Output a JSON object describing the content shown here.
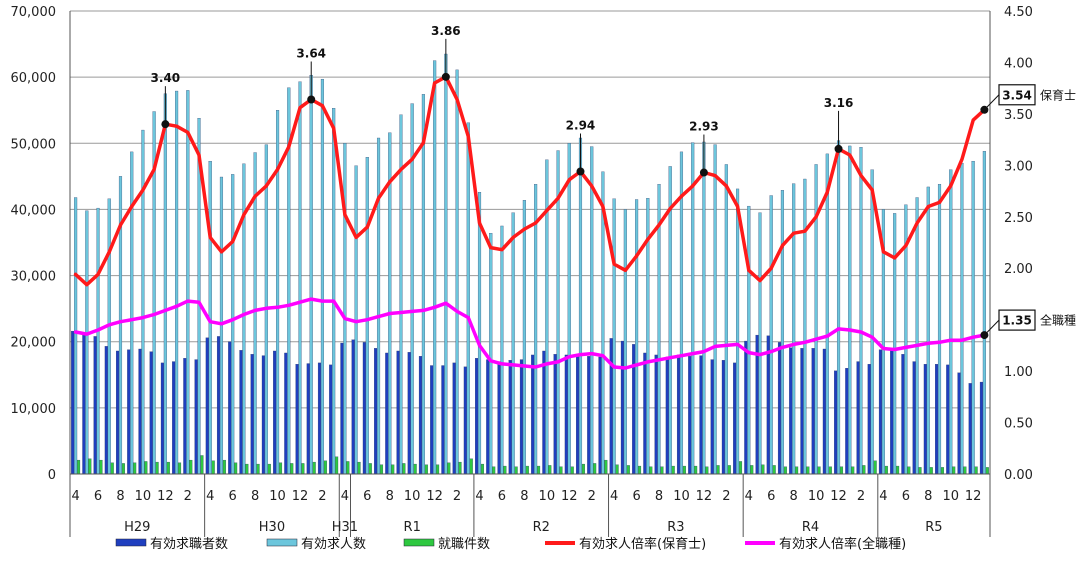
{
  "chart_data": {
    "type": "bar+line",
    "left_axis": {
      "min": 0,
      "max": 70000,
      "step": 10000,
      "tick_labels": [
        "0",
        "10,000",
        "20,000",
        "30,000",
        "40,000",
        "50,000",
        "60,000",
        "70,000"
      ]
    },
    "right_axis": {
      "min": 0,
      "max": 4.5,
      "step": 0.5,
      "tick_labels": [
        "0.00",
        "0.50",
        "1.00",
        "1.50",
        "2.00",
        "2.50",
        "3.00",
        "3.50",
        "4.00",
        "4.50"
      ]
    },
    "month_labels": [
      "4",
      "6",
      "8",
      "10",
      "12",
      "2",
      "4",
      "6",
      "8",
      "10",
      "12",
      "2",
      "4",
      "6",
      "8",
      "10",
      "12",
      "2",
      "4",
      "6",
      "8",
      "10",
      "12",
      "2",
      "4",
      "6",
      "8",
      "10",
      "12",
      "2",
      "4",
      "6",
      "8",
      "10",
      "12",
      "2",
      "4",
      "6",
      "8",
      "10",
      "12"
    ],
    "month_label_index": [
      0,
      2,
      4,
      6,
      8,
      10,
      12,
      14,
      16,
      18,
      20,
      22,
      24,
      26,
      28,
      30,
      32,
      34,
      36,
      38,
      40,
      42,
      44,
      46,
      48,
      50,
      52,
      54,
      56,
      58,
      60,
      62,
      64,
      66,
      68,
      70,
      72,
      74,
      76,
      78,
      80
    ],
    "groups": [
      {
        "label": "H29",
        "start": 0,
        "end": 11
      },
      {
        "label": "H30",
        "start": 12,
        "end": 23
      },
      {
        "label": "H31",
        "start": 24,
        "end": 24
      },
      {
        "label": "R1",
        "start": 25,
        "end": 35
      },
      {
        "label": "R2",
        "start": 36,
        "end": 47
      },
      {
        "label": "R3",
        "start": 48,
        "end": 59
      },
      {
        "label": "R4",
        "start": 60,
        "end": 71
      },
      {
        "label": "R5",
        "start": 72,
        "end": 81
      }
    ],
    "legend": [
      "有効求職者数",
      "有効求人数",
      "就職件数",
      "有効求人倍率(保育士)",
      "有効求人倍率(全職種)"
    ],
    "colors": {
      "seekers": "#1f3fbf",
      "openings": "#6cc6dc",
      "placements": "#2ec840",
      "ratio_nursery": "#ff1a1a",
      "ratio_all": "#ff00ff"
    },
    "series": [
      {
        "name": "有効求職者数",
        "axis": "left",
        "values": [
          21600,
          21300,
          20800,
          19300,
          18600,
          18800,
          18900,
          18500,
          16800,
          17000,
          17500,
          17300,
          20600,
          20800,
          20000,
          18700,
          18100,
          17900,
          18600,
          18300,
          16600,
          16700,
          16800,
          16500,
          19800,
          20300,
          19900,
          19000,
          18300,
          18600,
          18400,
          17800,
          16400,
          16400,
          16800,
          16200,
          17500,
          17300,
          17000,
          17200,
          17300,
          18000,
          18600,
          18100,
          18000,
          17800,
          17800,
          17700,
          20500,
          20100,
          19600,
          18300,
          18000,
          17700,
          18000,
          17800,
          17900,
          17300,
          17200,
          16800,
          20100,
          21000,
          20900,
          19900,
          19100,
          19000,
          19000,
          18900,
          15600,
          16000,
          17000,
          16600,
          18800,
          18800,
          18100,
          17000,
          16600,
          16600,
          16500,
          15300,
          13700,
          13900
        ]
      },
      {
        "name": "有効求人数",
        "axis": "left",
        "values": [
          41800,
          39800,
          40200,
          41600,
          45000,
          48700,
          52000,
          54800,
          57500,
          57900,
          58000,
          53800,
          47300,
          44900,
          45300,
          46900,
          48600,
          49800,
          55000,
          58400,
          59300,
          60300,
          59700,
          55300,
          50000,
          46600,
          47900,
          50800,
          51600,
          54300,
          56000,
          57400,
          62500,
          63500,
          61100,
          53100,
          42600,
          36400,
          37500,
          39500,
          41400,
          43800,
          47500,
          48900,
          50000,
          50800,
          49500,
          45700,
          41600,
          40000,
          41500,
          41700,
          43800,
          46500,
          48700,
          50100,
          50200,
          49800,
          46800,
          43100,
          40500,
          39500,
          42100,
          42900,
          43900,
          44600,
          46800,
          48400,
          50400,
          49600,
          49400,
          46000,
          40000,
          39400,
          40700,
          41800,
          43400,
          43800,
          46000,
          47000,
          47300,
          48800
        ]
      },
      {
        "name": "就職件数",
        "axis": "left",
        "values": [
          2100,
          2300,
          2100,
          1700,
          1600,
          1700,
          1900,
          1800,
          1800,
          1700,
          2100,
          2800,
          2000,
          2100,
          1700,
          1500,
          1500,
          1500,
          1700,
          1600,
          1600,
          1800,
          2000,
          2600,
          1900,
          1800,
          1600,
          1400,
          1400,
          1600,
          1500,
          1400,
          1400,
          1700,
          1800,
          2300,
          1500,
          1100,
          1200,
          1100,
          1200,
          1200,
          1300,
          1100,
          1100,
          1500,
          1600,
          2100,
          1400,
          1300,
          1200,
          1100,
          1100,
          1200,
          1200,
          1200,
          1100,
          1300,
          1300,
          1900,
          1300,
          1400,
          1300,
          1100,
          1100,
          1100,
          1100,
          1100,
          1100,
          1100,
          1300,
          2000,
          1200,
          1200,
          1100,
          1000,
          1000,
          1000,
          1100,
          1100,
          1100,
          1000
        ]
      },
      {
        "name": "有効求人倍率(保育士)",
        "axis": "right",
        "values": [
          1.94,
          1.84,
          1.94,
          2.16,
          2.42,
          2.6,
          2.76,
          2.96,
          3.4,
          3.38,
          3.32,
          3.1,
          2.3,
          2.16,
          2.26,
          2.52,
          2.7,
          2.8,
          2.96,
          3.18,
          3.56,
          3.64,
          3.58,
          3.36,
          2.52,
          2.3,
          2.4,
          2.68,
          2.84,
          2.96,
          3.06,
          3.22,
          3.8,
          3.86,
          3.64,
          3.28,
          2.44,
          2.2,
          2.18,
          2.3,
          2.38,
          2.44,
          2.56,
          2.68,
          2.86,
          2.94,
          2.8,
          2.6,
          2.04,
          1.98,
          2.12,
          2.28,
          2.42,
          2.58,
          2.7,
          2.8,
          2.93,
          2.9,
          2.8,
          2.6,
          1.98,
          1.88,
          2.0,
          2.22,
          2.34,
          2.36,
          2.5,
          2.74,
          3.16,
          3.1,
          2.9,
          2.76,
          2.16,
          2.1,
          2.22,
          2.44,
          2.6,
          2.64,
          2.8,
          3.06,
          3.44,
          3.54
        ]
      },
      {
        "name": "有効求人倍率(全職種)",
        "axis": "right",
        "values": [
          1.38,
          1.36,
          1.4,
          1.45,
          1.48,
          1.5,
          1.52,
          1.55,
          1.59,
          1.63,
          1.68,
          1.67,
          1.48,
          1.46,
          1.5,
          1.55,
          1.59,
          1.61,
          1.62,
          1.64,
          1.67,
          1.7,
          1.68,
          1.68,
          1.51,
          1.48,
          1.5,
          1.53,
          1.56,
          1.57,
          1.58,
          1.59,
          1.62,
          1.66,
          1.58,
          1.52,
          1.25,
          1.1,
          1.07,
          1.06,
          1.05,
          1.04,
          1.07,
          1.09,
          1.14,
          1.16,
          1.17,
          1.15,
          1.04,
          1.03,
          1.06,
          1.09,
          1.11,
          1.13,
          1.15,
          1.17,
          1.19,
          1.24,
          1.25,
          1.26,
          1.18,
          1.16,
          1.19,
          1.23,
          1.26,
          1.28,
          1.31,
          1.34,
          1.41,
          1.4,
          1.38,
          1.33,
          1.22,
          1.21,
          1.23,
          1.25,
          1.27,
          1.28,
          1.3,
          1.3,
          1.33,
          1.35
        ]
      }
    ],
    "peak_annotations": [
      {
        "index": 8,
        "value": 3.4,
        "label": "3.40"
      },
      {
        "index": 21,
        "value": 3.64,
        "label": "3.64"
      },
      {
        "index": 33,
        "value": 3.86,
        "label": "3.86"
      },
      {
        "index": 45,
        "value": 2.94,
        "label": "2.94"
      },
      {
        "index": 56,
        "value": 2.93,
        "label": "2.93"
      },
      {
        "index": 68,
        "value": 3.16,
        "label": "3.16"
      }
    ],
    "end_labels": [
      {
        "series": 3,
        "value": 3.54,
        "label": "3.54",
        "name": "保育士"
      },
      {
        "series": 4,
        "value": 1.35,
        "label": "1.35",
        "name": "全職種"
      }
    ],
    "grid": true,
    "legend_position": "bottom"
  }
}
